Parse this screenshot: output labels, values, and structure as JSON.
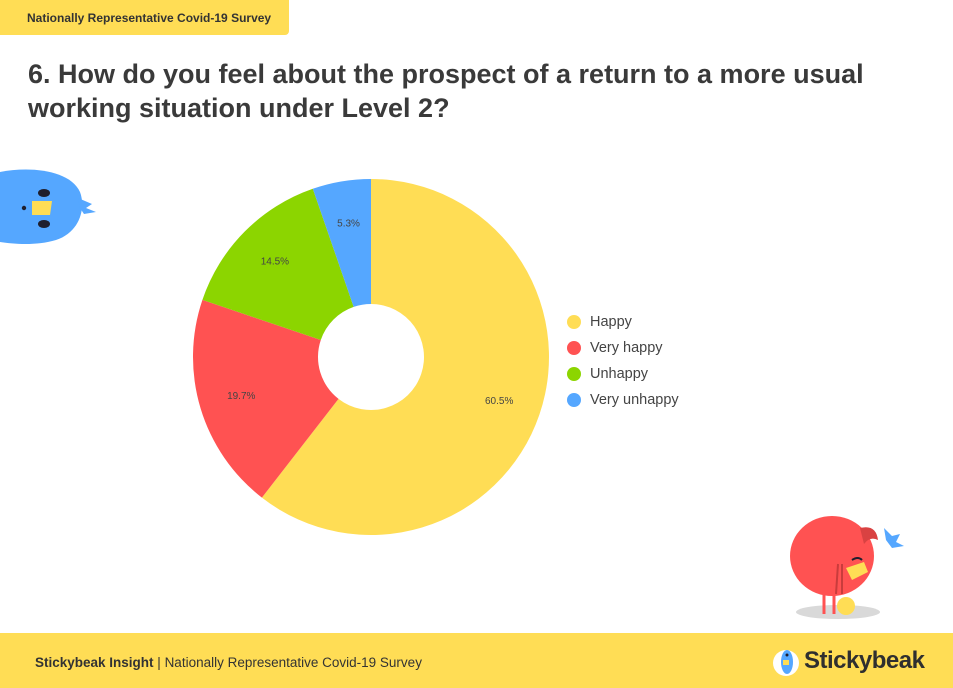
{
  "header": {
    "survey_tag": "Nationally Representative Covid-19 Survey",
    "question_title": "6. How do you feel about the prospect of a return to a more usual working situation under Level 2?"
  },
  "chart_data": {
    "type": "pie",
    "donut": true,
    "title": "",
    "legend_position": "right",
    "series": [
      {
        "name": "Happy",
        "value": 60.5,
        "label": "60.5%",
        "color": "#ffdd55"
      },
      {
        "name": "Very happy",
        "value": 19.7,
        "label": "19.7%",
        "color": "#ff5252"
      },
      {
        "name": "Unhappy",
        "value": 14.5,
        "label": "14.5%",
        "color": "#8cd500"
      },
      {
        "name": "Very unhappy",
        "value": 5.3,
        "label": "5.3%",
        "color": "#55a7ff"
      }
    ]
  },
  "footer": {
    "brand": "Stickybeak Insight",
    "separator": " | ",
    "subtitle": "Nationally Representative Covid-19 Survey",
    "logo_text": "Stickybeak"
  },
  "icons": {
    "left_mascot": "blue-bird-icon",
    "right_mascot": "red-bird-icon",
    "logo_mascot": "stickybeak-logo-icon"
  }
}
